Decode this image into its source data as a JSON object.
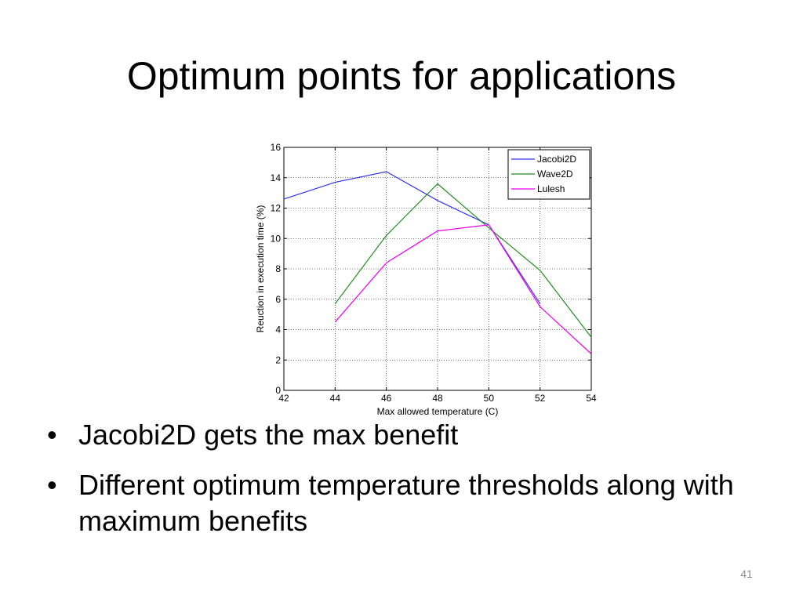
{
  "slide": {
    "title": "Optimum points for applications",
    "bullets": [
      "Jacobi2D gets the max benefit",
      "Different optimum temperature thresholds along with maximum benefits"
    ],
    "bullet_symbol": "•",
    "slide_number": "41"
  },
  "chart_data": {
    "type": "line",
    "title": "",
    "xlabel": "Max allowed temperature (C)",
    "ylabel": "Reuction in execution time (%)",
    "xlim": [
      42,
      54
    ],
    "ylim": [
      0,
      16
    ],
    "x_ticks": [
      "42",
      "44",
      "46",
      "48",
      "50",
      "52",
      "54"
    ],
    "y_ticks": [
      "0",
      "2",
      "4",
      "6",
      "8",
      "10",
      "12",
      "14",
      "16"
    ],
    "grid": true,
    "legend_position": "top-right",
    "series": [
      {
        "name": "Jacobi2D",
        "color": "#3333ee",
        "x": [
          42,
          44,
          46,
          48,
          50,
          52
        ],
        "y": [
          12.6,
          13.7,
          14.4,
          12.5,
          10.9,
          5.7
        ]
      },
      {
        "name": "Wave2D",
        "color": "#228b22",
        "x": [
          44,
          46,
          48,
          50,
          52,
          54
        ],
        "y": [
          5.7,
          10.2,
          13.6,
          10.7,
          7.9,
          3.5
        ]
      },
      {
        "name": "Lulesh",
        "color": "#ee00ee",
        "x": [
          44,
          46,
          48,
          50,
          52,
          54
        ],
        "y": [
          4.5,
          8.4,
          10.5,
          10.9,
          5.5,
          2.4
        ]
      }
    ]
  }
}
